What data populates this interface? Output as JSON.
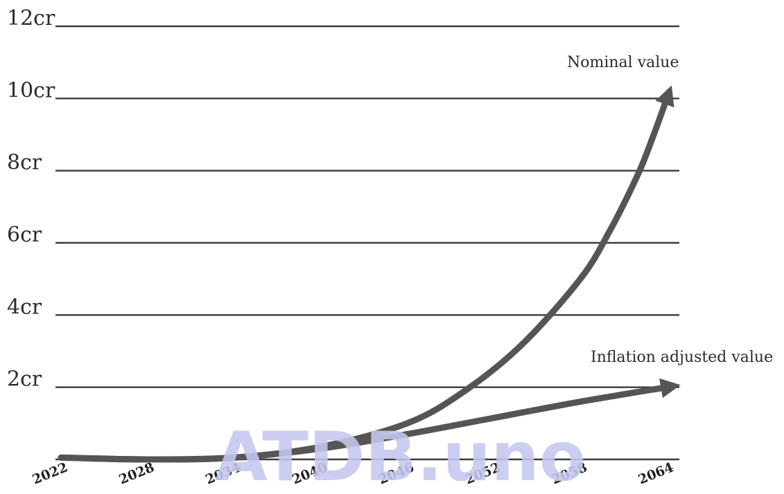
{
  "chart_data": {
    "type": "line",
    "title": "",
    "xlabel": "",
    "ylabel": "",
    "x_ticks": [
      "2022",
      "2028",
      "2034",
      "2040",
      "2046",
      "2052",
      "2058",
      "2064"
    ],
    "y_ticks": [
      {
        "value": 0,
        "label": ""
      },
      {
        "value": 2,
        "label": "2cr"
      },
      {
        "value": 4,
        "label": "4cr"
      },
      {
        "value": 6,
        "label": "6cr"
      },
      {
        "value": 8,
        "label": "8cr"
      },
      {
        "value": 10,
        "label": "10cr"
      },
      {
        "value": 12,
        "label": "12cr"
      }
    ],
    "xlim": [
      2022,
      2064
    ],
    "ylim": [
      0,
      12
    ],
    "grid": true,
    "series": [
      {
        "name": "Nominal value",
        "color": "#555555",
        "x": [
          2022,
          2028,
          2034,
          2040,
          2046,
          2050,
          2054,
          2058,
          2060,
          2062,
          2063,
          2064
        ],
        "y": [
          0.05,
          0.0,
          0.05,
          0.35,
          1.0,
          1.9,
          3.2,
          5.0,
          6.3,
          7.9,
          8.9,
          10.0
        ]
      },
      {
        "name": "Inflation adjusted value",
        "color": "#555555",
        "x": [
          2022,
          2028,
          2034,
          2040,
          2046,
          2052,
          2058,
          2064
        ],
        "y": [
          0.05,
          0.0,
          0.05,
          0.3,
          0.7,
          1.15,
          1.6,
          2.0
        ]
      }
    ],
    "annotations": [
      "Nominal value",
      "Inflation adjusted value"
    ]
  },
  "watermark": "ATDB.uno"
}
